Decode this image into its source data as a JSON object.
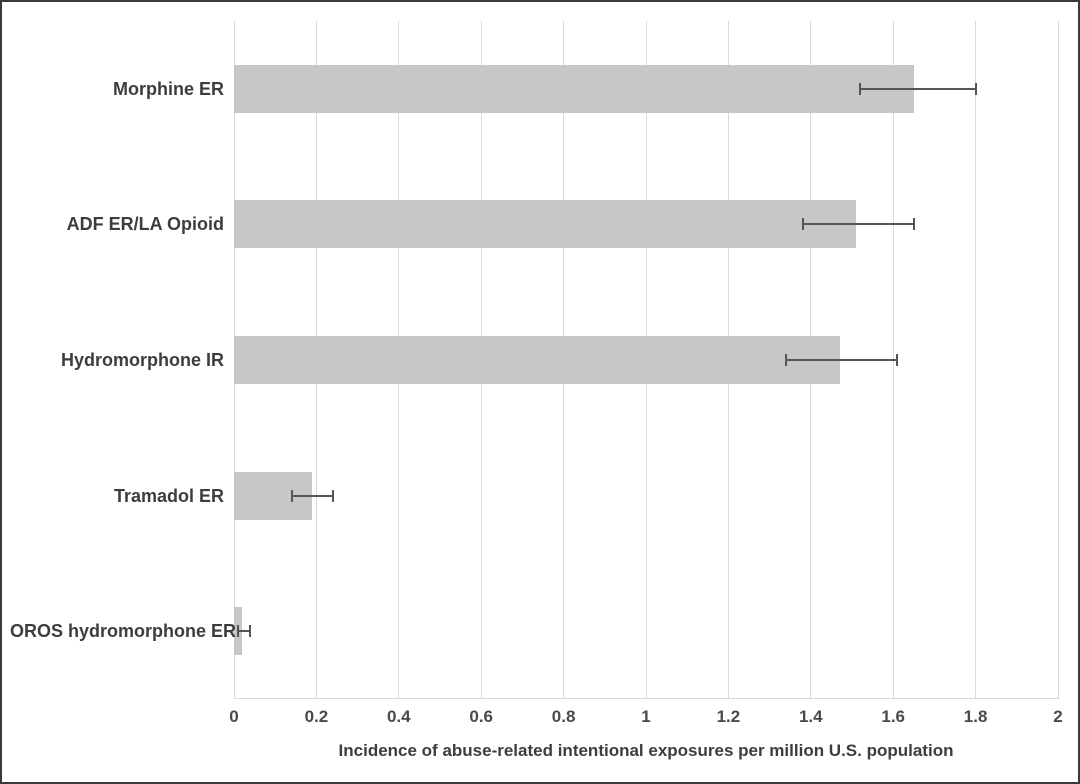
{
  "chart_data": {
    "type": "bar",
    "orientation": "horizontal",
    "title": "",
    "xlabel": "Incidence of abuse-related intentional exposures per million U.S. population",
    "ylabel": "",
    "xlim": [
      0,
      2
    ],
    "xticks": [
      0,
      0.2,
      0.4,
      0.6,
      0.8,
      1,
      1.2,
      1.4,
      1.6,
      1.8,
      2
    ],
    "xtick_labels": [
      "0",
      "0.2",
      "0.4",
      "0.6",
      "0.8",
      "1",
      "1.2",
      "1.4",
      "1.6",
      "1.8",
      "2"
    ],
    "grid": "vertical",
    "legend": "none",
    "categories": [
      "Morphine ER",
      "ADF ER/LA Opioid",
      "Hydromorphone IR",
      "Tramadol ER",
      "OROS hydromorphone ER"
    ],
    "series": [
      {
        "name": "Incidence of abuse-related intentional exposures",
        "values": [
          1.65,
          1.51,
          1.47,
          0.19,
          0.02
        ],
        "error_low": [
          1.52,
          1.38,
          1.34,
          0.14,
          0.01
        ],
        "error_high": [
          1.8,
          1.65,
          1.61,
          0.24,
          0.04
        ]
      }
    ],
    "colors": {
      "bar_fill": "#c7c7c7",
      "error_bar": "#555555",
      "gridline": "#d9d9d9",
      "axis_line": "#d9d9d9",
      "text": "#3d3d3d",
      "tick_text": "#4a4a4a",
      "border": "#3b3b3b",
      "background": "#ffffff"
    }
  }
}
